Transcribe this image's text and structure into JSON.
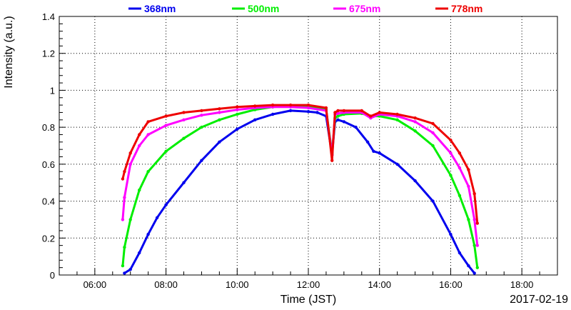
{
  "chart_data": {
    "type": "scatter",
    "xlabel": "Time (JST)",
    "ylabel": "Intensity (a.u.)",
    "date_label": "2017-02-19",
    "xlim": [
      "05:00",
      "19:00"
    ],
    "ylim": [
      0,
      1.4
    ],
    "x_ticks": [
      "06:00",
      "08:00",
      "10:00",
      "12:00",
      "14:00",
      "16:00",
      "18:00"
    ],
    "y_ticks": [
      "0",
      "0.2",
      "0.4",
      "0.6",
      "0.8",
      "1",
      "1.2",
      "1.4"
    ],
    "grid": true,
    "legend_position": "top",
    "series": [
      {
        "name": "368nm",
        "color": "#0000ee",
        "points": [
          [
            "06:50",
            0.01
          ],
          [
            "07:00",
            0.03
          ],
          [
            "07:15",
            0.12
          ],
          [
            "07:30",
            0.22
          ],
          [
            "07:45",
            0.31
          ],
          [
            "08:00",
            0.38
          ],
          [
            "08:30",
            0.5
          ],
          [
            "09:00",
            0.62
          ],
          [
            "09:30",
            0.72
          ],
          [
            "10:00",
            0.79
          ],
          [
            "10:30",
            0.84
          ],
          [
            "11:00",
            0.87
          ],
          [
            "11:30",
            0.89
          ],
          [
            "12:00",
            0.885
          ],
          [
            "12:15",
            0.88
          ],
          [
            "12:30",
            0.86
          ],
          [
            "12:40",
            0.65
          ],
          [
            "12:45",
            0.83
          ],
          [
            "12:50",
            0.84
          ],
          [
            "13:00",
            0.83
          ],
          [
            "13:20",
            0.8
          ],
          [
            "13:40",
            0.72
          ],
          [
            "13:50",
            0.67
          ],
          [
            "14:00",
            0.66
          ],
          [
            "14:30",
            0.6
          ],
          [
            "15:00",
            0.51
          ],
          [
            "15:30",
            0.4
          ],
          [
            "16:00",
            0.22
          ],
          [
            "16:15",
            0.12
          ],
          [
            "16:30",
            0.05
          ],
          [
            "16:40",
            0.01
          ]
        ]
      },
      {
        "name": "500nm",
        "color": "#00ee00",
        "points": [
          [
            "06:47",
            0.05
          ],
          [
            "06:50",
            0.15
          ],
          [
            "07:00",
            0.3
          ],
          [
            "07:15",
            0.46
          ],
          [
            "07:30",
            0.56
          ],
          [
            "08:00",
            0.67
          ],
          [
            "08:30",
            0.74
          ],
          [
            "09:00",
            0.8
          ],
          [
            "09:30",
            0.84
          ],
          [
            "10:00",
            0.87
          ],
          [
            "10:30",
            0.895
          ],
          [
            "11:00",
            0.91
          ],
          [
            "11:30",
            0.915
          ],
          [
            "12:00",
            0.91
          ],
          [
            "12:30",
            0.895
          ],
          [
            "12:40",
            0.66
          ],
          [
            "12:45",
            0.85
          ],
          [
            "12:50",
            0.86
          ],
          [
            "13:00",
            0.87
          ],
          [
            "13:30",
            0.875
          ],
          [
            "13:45",
            0.86
          ],
          [
            "14:00",
            0.86
          ],
          [
            "14:30",
            0.84
          ],
          [
            "15:00",
            0.78
          ],
          [
            "15:30",
            0.7
          ],
          [
            "16:00",
            0.54
          ],
          [
            "16:15",
            0.43
          ],
          [
            "16:30",
            0.3
          ],
          [
            "16:40",
            0.16
          ],
          [
            "16:45",
            0.04
          ]
        ]
      },
      {
        "name": "675nm",
        "color": "#ff00ff",
        "points": [
          [
            "06:47",
            0.3
          ],
          [
            "06:50",
            0.42
          ],
          [
            "07:00",
            0.6
          ],
          [
            "07:15",
            0.7
          ],
          [
            "07:30",
            0.76
          ],
          [
            "08:00",
            0.81
          ],
          [
            "08:30",
            0.84
          ],
          [
            "09:00",
            0.865
          ],
          [
            "09:30",
            0.88
          ],
          [
            "10:00",
            0.895
          ],
          [
            "10:30",
            0.905
          ],
          [
            "11:00",
            0.91
          ],
          [
            "11:30",
            0.91
          ],
          [
            "12:00",
            0.905
          ],
          [
            "12:30",
            0.89
          ],
          [
            "12:40",
            0.65
          ],
          [
            "12:45",
            0.87
          ],
          [
            "12:50",
            0.875
          ],
          [
            "13:00",
            0.88
          ],
          [
            "13:30",
            0.88
          ],
          [
            "13:45",
            0.85
          ],
          [
            "14:00",
            0.87
          ],
          [
            "14:30",
            0.86
          ],
          [
            "15:00",
            0.83
          ],
          [
            "15:30",
            0.77
          ],
          [
            "16:00",
            0.66
          ],
          [
            "16:15",
            0.58
          ],
          [
            "16:30",
            0.48
          ],
          [
            "16:40",
            0.3
          ],
          [
            "16:45",
            0.16
          ]
        ]
      },
      {
        "name": "778nm",
        "color": "#ee0000",
        "points": [
          [
            "06:47",
            0.52
          ],
          [
            "06:50",
            0.56
          ],
          [
            "07:00",
            0.66
          ],
          [
            "07:15",
            0.76
          ],
          [
            "07:30",
            0.83
          ],
          [
            "08:00",
            0.86
          ],
          [
            "08:30",
            0.88
          ],
          [
            "09:00",
            0.89
          ],
          [
            "09:30",
            0.9
          ],
          [
            "10:00",
            0.91
          ],
          [
            "10:30",
            0.915
          ],
          [
            "11:00",
            0.92
          ],
          [
            "11:30",
            0.92
          ],
          [
            "12:00",
            0.92
          ],
          [
            "12:30",
            0.905
          ],
          [
            "12:40",
            0.62
          ],
          [
            "12:45",
            0.88
          ],
          [
            "12:50",
            0.89
          ],
          [
            "13:00",
            0.89
          ],
          [
            "13:30",
            0.89
          ],
          [
            "13:45",
            0.86
          ],
          [
            "14:00",
            0.88
          ],
          [
            "14:30",
            0.87
          ],
          [
            "15:00",
            0.85
          ],
          [
            "15:30",
            0.82
          ],
          [
            "16:00",
            0.73
          ],
          [
            "16:15",
            0.66
          ],
          [
            "16:30",
            0.57
          ],
          [
            "16:40",
            0.44
          ],
          [
            "16:45",
            0.28
          ]
        ]
      }
    ]
  }
}
